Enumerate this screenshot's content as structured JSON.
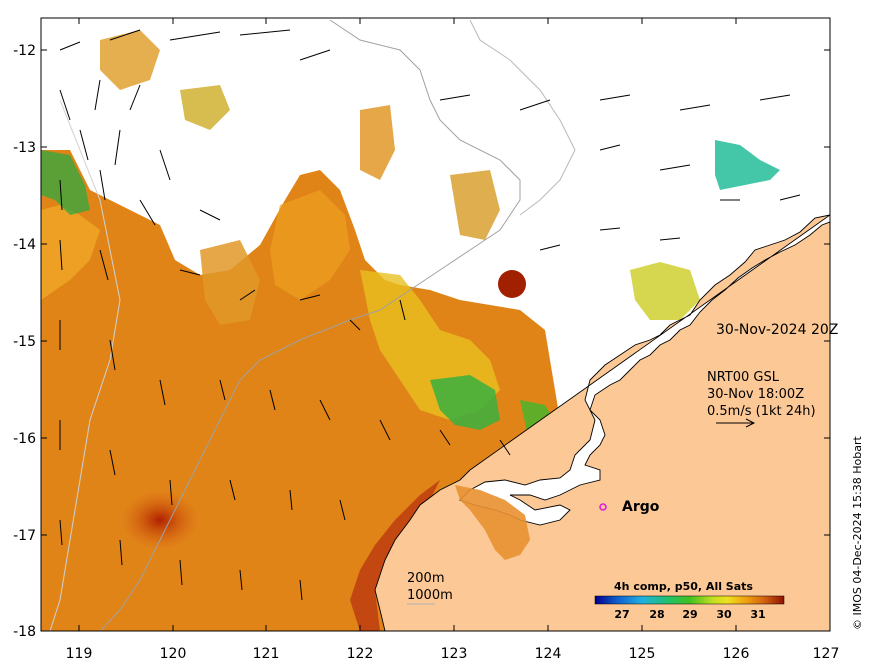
{
  "map": {
    "x_ticks": [
      "119",
      "120",
      "121",
      "122",
      "123",
      "124",
      "125",
      "126",
      "127"
    ],
    "y_ticks": [
      "-12",
      "-13",
      "-14",
      "-15",
      "-16",
      "-17",
      "-18"
    ],
    "lon_range": [
      118.6,
      127.0
    ],
    "lat_range": [
      -18.0,
      -11.75
    ]
  },
  "annotations": {
    "timestamp": "30-Nov-2024 20Z",
    "current_model": "NRT00 GSL",
    "current_time": "30-Nov 18:00Z",
    "current_scale": "0.5m/s (1kt 24h)",
    "argo_label": "Argo",
    "depth_200": "200m",
    "depth_1000": "1000m"
  },
  "colorbar": {
    "title": "4h comp, p50, All Sats",
    "ticks": [
      "27",
      "28",
      "29",
      "30",
      "31"
    ],
    "range": [
      26.3,
      31.7
    ]
  },
  "credit": "© IMOS 04-Dec-2024 15:38 Hobart",
  "colors": {
    "land": "#fcc896",
    "sst_warm": "#e08010",
    "sst_hot": "#a01800",
    "sst_cool": "#2ab040",
    "argo_marker": "#e020e0"
  }
}
